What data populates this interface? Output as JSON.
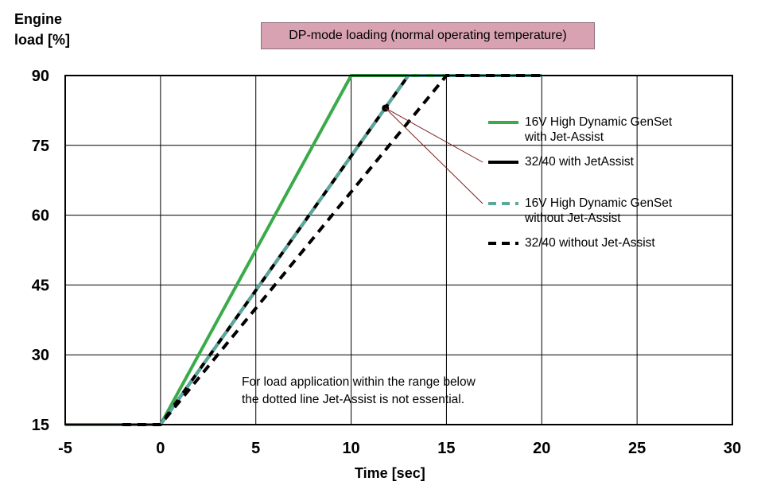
{
  "chart_data": {
    "type": "line",
    "title": "DP-mode loading (normal operating temperature)",
    "ylabel_lines": [
      "Engine",
      "load [%]"
    ],
    "xlabel": "Time [sec]",
    "xlim": [
      -5,
      30
    ],
    "ylim": [
      15,
      90
    ],
    "xticks": [
      -5,
      0,
      5,
      10,
      15,
      20,
      25,
      30
    ],
    "yticks": [
      15,
      30,
      45,
      60,
      75,
      90
    ],
    "grid": true,
    "legend_position": "right",
    "series": [
      {
        "name": "16V High Dynamic GenSet with Jet-Assist",
        "style": "solid",
        "color": "#3aaa4a",
        "points": [
          [
            -5,
            15
          ],
          [
            0,
            15
          ],
          [
            10,
            90
          ],
          [
            20,
            90
          ]
        ]
      },
      {
        "name": "32/40 with JetAssist",
        "style": "solid",
        "color": "#000000",
        "points": [
          [
            0,
            15
          ],
          [
            13,
            90
          ]
        ]
      },
      {
        "name": "16V High Dynamic GenSet without Jet-Assist",
        "style": "dashed",
        "color": "#5aa79b",
        "points": [
          [
            0,
            15
          ],
          [
            13,
            90
          ],
          [
            20,
            90
          ]
        ]
      },
      {
        "name": "32/40 without Jet-Assist",
        "style": "dashed",
        "color": "#000000",
        "points": [
          [
            -2,
            15
          ],
          [
            0,
            15
          ],
          [
            15,
            90
          ],
          [
            20,
            90
          ]
        ]
      }
    ],
    "marker_point": [
      11.8,
      83
    ],
    "legend_labels": [
      [
        "16V High Dynamic GenSet",
        "with Jet-Assist"
      ],
      [
        "32/40 with JetAssist"
      ],
      [
        "16V High Dynamic GenSet",
        "without Jet-Assist"
      ],
      [
        "32/40 without Jet-Assist"
      ]
    ],
    "annotation_lines": [
      "For load application within the range below",
      "the dotted line Jet-Assist is not essential."
    ]
  }
}
